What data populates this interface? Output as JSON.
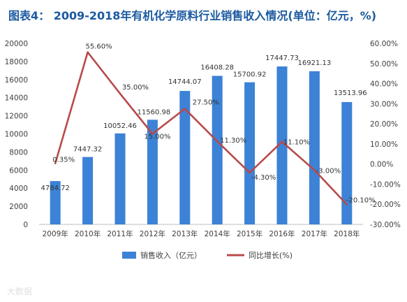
{
  "title": "图表4： 2009-2018年有机化学原料行业销售收入情况(单位：亿元，%)",
  "watermark": "大数据",
  "colors": {
    "bar": "#3c82d6",
    "line": "#b84a4a",
    "title": "#1b5aa0"
  },
  "chart_data": {
    "type": "bar",
    "categories": [
      "2009年",
      "2010年",
      "2011年",
      "2012年",
      "2013年",
      "2014年",
      "2015年",
      "2016年",
      "2017年",
      "2018年"
    ],
    "series": [
      {
        "name": "销售收入（亿元）",
        "type": "bar",
        "axis": "left",
        "values": [
          4784.72,
          7447.32,
          10052.46,
          11560.98,
          14744.07,
          16408.28,
          15700.92,
          17447.73,
          16921.13,
          13513.96
        ],
        "labels": [
          "4784.72",
          "7447.32",
          "10052.46",
          "11560.98",
          "14744.07",
          "16408.28",
          "15700.92",
          "17447.73",
          "16921.13",
          "13513.96"
        ]
      },
      {
        "name": "同比增长(%)",
        "type": "line",
        "axis": "right",
        "values": [
          0.35,
          55.6,
          35.0,
          15.0,
          27.5,
          11.3,
          -4.3,
          11.1,
          -3.0,
          -20.1
        ],
        "labels": [
          "0.35%",
          "55.60%",
          "35.00%",
          "15.00%",
          "27.50%",
          "11.30%",
          "-4.30%",
          "11.10%",
          "-3.00%",
          "-20.10%"
        ]
      }
    ],
    "y_left": {
      "ylim": [
        0,
        20000
      ],
      "ticks": [
        "0",
        "2000",
        "4000",
        "6000",
        "8000",
        "10000",
        "12000",
        "14000",
        "16000",
        "18000",
        "20000"
      ]
    },
    "y_right": {
      "ylim": [
        -30,
        60
      ],
      "ticks": [
        "-30.00%",
        "-20.00%",
        "-10.00%",
        "0.00%",
        "10.00%",
        "20.00%",
        "30.00%",
        "40.00%",
        "50.00%",
        "60.00%"
      ]
    },
    "legend_position": "bottom"
  }
}
